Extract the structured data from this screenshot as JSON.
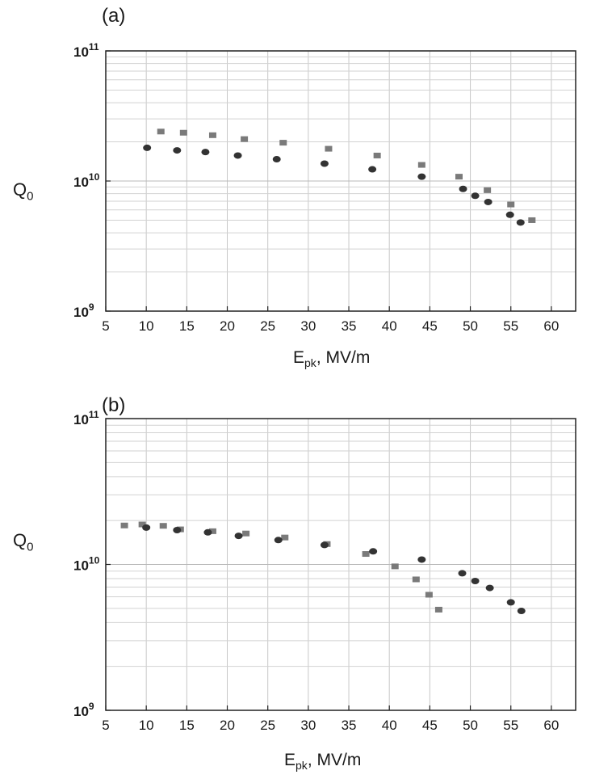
{
  "chart_data": [
    {
      "panel_label": "(a)",
      "type": "scatter",
      "xlabel": "E",
      "xlabel_sub": "pk",
      "xlabel_suffix": ", MV/m",
      "ylabel": "Q",
      "ylabel_sub": "0",
      "xlim": [
        5,
        63
      ],
      "ylim": [
        1000000000.0,
        100000000000.0
      ],
      "y_scale": "log",
      "grid": true,
      "x_ticks": [
        5,
        10,
        15,
        20,
        25,
        30,
        35,
        40,
        45,
        50,
        55,
        60
      ],
      "y_ticks": [
        {
          "base": "10",
          "exp": "9",
          "value": 1000000000.0
        },
        {
          "base": "10",
          "exp": "10",
          "value": 10000000000.0
        },
        {
          "base": "10",
          "exp": "11",
          "value": 100000000000.0
        }
      ],
      "series": [
        {
          "marker": "square",
          "color": "#7a7a7a",
          "points": [
            [
              11.8,
              24000000000.0
            ],
            [
              14.6,
              23500000000.0
            ],
            [
              18.2,
              22500000000.0
            ],
            [
              22.1,
              21000000000.0
            ],
            [
              26.9,
              19700000000.0
            ],
            [
              32.5,
              17700000000.0
            ],
            [
              38.5,
              15700000000.0
            ],
            [
              44.0,
              13300000000.0
            ],
            [
              48.6,
              10800000000.0
            ],
            [
              52.1,
              8500000000.0
            ],
            [
              55.0,
              6600000000.0
            ],
            [
              57.6,
              5000000000.0
            ]
          ]
        },
        {
          "marker": "circle",
          "color": "#333333",
          "points": [
            [
              10.1,
              18000000000.0
            ],
            [
              13.8,
              17200000000.0
            ],
            [
              17.3,
              16700000000.0
            ],
            [
              21.3,
              15700000000.0
            ],
            [
              26.1,
              14700000000.0
            ],
            [
              32.0,
              13600000000.0
            ],
            [
              37.9,
              12300000000.0
            ],
            [
              44.0,
              10800000000.0
            ],
            [
              49.1,
              8700000000.0
            ],
            [
              50.6,
              7700000000.0
            ],
            [
              52.2,
              6900000000.0
            ],
            [
              54.9,
              5500000000.0
            ],
            [
              56.2,
              4800000000.0
            ]
          ]
        }
      ]
    },
    {
      "panel_label": "(b)",
      "type": "scatter",
      "xlabel": "E",
      "xlabel_sub": "pk",
      "xlabel_suffix": ", MV/m",
      "ylabel": "Q",
      "ylabel_sub": "0",
      "xlim": [
        5,
        63
      ],
      "ylim": [
        1000000000.0,
        100000000000.0
      ],
      "y_scale": "log",
      "grid": true,
      "x_ticks": [
        5,
        10,
        15,
        20,
        25,
        30,
        35,
        40,
        45,
        50,
        55,
        60
      ],
      "y_ticks": [
        {
          "base": "10",
          "exp": "9",
          "value": 1000000000.0
        },
        {
          "base": "10",
          "exp": "10",
          "value": 10000000000.0
        },
        {
          "base": "10",
          "exp": "11",
          "value": 100000000000.0
        }
      ],
      "series": [
        {
          "marker": "square",
          "color": "#7a7a7a",
          "points": [
            [
              7.3,
              18500000000.0
            ],
            [
              9.5,
              18800000000.0
            ],
            [
              12.1,
              18400000000.0
            ],
            [
              14.2,
              17400000000.0
            ],
            [
              18.2,
              16900000000.0
            ],
            [
              22.3,
              16300000000.0
            ],
            [
              27.1,
              15300000000.0
            ],
            [
              32.3,
              13800000000.0
            ],
            [
              37.1,
              11800000000.0
            ],
            [
              40.7,
              9700000000.0
            ],
            [
              43.3,
              7900000000.0
            ],
            [
              44.9,
              6200000000.0
            ],
            [
              46.1,
              4900000000.0
            ]
          ]
        },
        {
          "marker": "circle",
          "color": "#333333",
          "points": [
            [
              10.0,
              17900000000.0
            ],
            [
              13.8,
              17200000000.0
            ],
            [
              17.6,
              16600000000.0
            ],
            [
              21.4,
              15700000000.0
            ],
            [
              26.3,
              14700000000.0
            ],
            [
              32.0,
              13600000000.0
            ],
            [
              38.0,
              12300000000.0
            ],
            [
              44.0,
              10800000000.0
            ],
            [
              49.0,
              8700000000.0
            ],
            [
              50.6,
              7700000000.0
            ],
            [
              52.4,
              6900000000.0
            ],
            [
              55.0,
              5500000000.0
            ],
            [
              56.3,
              4800000000.0
            ]
          ]
        }
      ]
    }
  ]
}
